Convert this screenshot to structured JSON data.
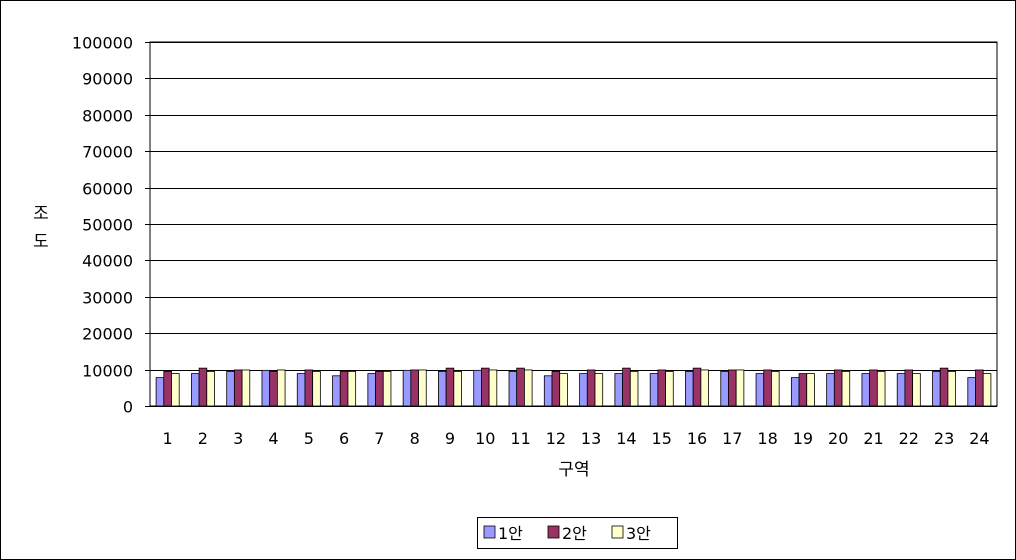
{
  "chart_data": {
    "type": "bar",
    "title": "",
    "xlabel": "구역",
    "ylabel": "조도",
    "ylim": [
      0,
      100000
    ],
    "yticks": [
      "0",
      "10000",
      "20000",
      "30000",
      "40000",
      "50000",
      "60000",
      "70000",
      "80000",
      "90000",
      "100000"
    ],
    "categories": [
      "1",
      "2",
      "3",
      "4",
      "5",
      "6",
      "7",
      "8",
      "9",
      "10",
      "11",
      "12",
      "13",
      "14",
      "15",
      "16",
      "17",
      "18",
      "19",
      "20",
      "21",
      "22",
      "23",
      "24"
    ],
    "grid": true,
    "legend_position": "bottom-center",
    "series": [
      {
        "name": "1안",
        "color": "#9999ff",
        "values": [
          7800,
          8900,
          9500,
          9800,
          8900,
          8300,
          8900,
          9800,
          9500,
          9800,
          9500,
          8300,
          8900,
          8900,
          8900,
          9500,
          9500,
          8900,
          7800,
          8900,
          8900,
          8900,
          9500,
          7800
        ]
      },
      {
        "name": "2안",
        "color": "#993366",
        "values": [
          9500,
          10400,
          9900,
          9500,
          9900,
          9500,
          9500,
          9900,
          10400,
          10400,
          10400,
          9500,
          9900,
          10400,
          9900,
          10400,
          9900,
          9900,
          8900,
          9900,
          9900,
          9900,
          10400,
          9900
        ]
      },
      {
        "name": "3안",
        "color": "#ffffcc",
        "values": [
          8900,
          9500,
          9900,
          9900,
          9500,
          9500,
          9500,
          9900,
          9500,
          9900,
          9900,
          8900,
          8900,
          9500,
          9500,
          9900,
          9900,
          9500,
          8900,
          9500,
          9500,
          8900,
          9500,
          8900
        ]
      }
    ]
  }
}
